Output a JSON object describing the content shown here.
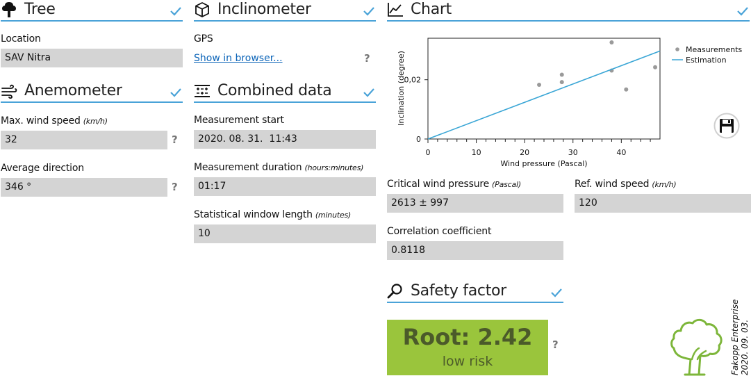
{
  "tree": {
    "title": "Tree",
    "location_label": "Location",
    "location_value": "SAV Nitra"
  },
  "inclinometer": {
    "title": "Inclinometer",
    "gps_label": "GPS",
    "gps_link": "Show in browser..."
  },
  "chart_section": {
    "title": "Chart"
  },
  "anemometer": {
    "title": "Anemometer",
    "max_wind_label": "Max. wind speed",
    "max_wind_unit": "(km/h)",
    "max_wind_value": "32",
    "avg_dir_label": "Average direction",
    "avg_dir_value": "346 °"
  },
  "combined": {
    "title": "Combined data",
    "start_label": "Measurement start",
    "start_value": "2020. 08. 31.  11:43",
    "duration_label": "Measurement duration",
    "duration_unit": "(hours:minutes)",
    "duration_value": "01:17",
    "window_label": "Statistical window length",
    "window_unit": "(minutes)",
    "window_value": "10"
  },
  "results": {
    "critical_label": "Critical wind pressure",
    "critical_unit": "(Pascal)",
    "critical_value": "2613 ± 997",
    "ref_label": "Ref. wind speed",
    "ref_unit": "(km/h)",
    "ref_value": "120",
    "corr_label": "Correlation coefficient",
    "corr_value": "0.8118"
  },
  "safety": {
    "title": "Safety factor",
    "root_text": "Root: 2.42",
    "risk_text": "low risk",
    "box_color": "#9ac53c"
  },
  "brand": {
    "company": "Fakopp Enterprise",
    "date": "2020. 09. 03."
  },
  "help_symbol": "?",
  "colors": {
    "accent": "#4aa3d8",
    "field": "#d4d4d4",
    "link": "#0b64b8",
    "tree_logo": "#7db63a"
  },
  "icons": {
    "tree": "tree-icon",
    "inclinometer": "cube-icon",
    "chart": "line-chart-icon",
    "anemometer": "wind-icon",
    "combined": "combined-data-icon",
    "safety": "magnifier-icon",
    "save": "save-icon",
    "check": "check-icon",
    "logo": "tree-logo"
  },
  "chart_data": {
    "type": "scatter",
    "title": "",
    "xlabel": "Wind pressure (Pascal)",
    "ylabel": "Inclination (degree)",
    "xlim": [
      0,
      48
    ],
    "ylim": [
      0,
      0.034
    ],
    "xticks": [
      0,
      10,
      20,
      30,
      40
    ],
    "xtick_labels": [
      "0",
      "10",
      "20",
      "30",
      "40"
    ],
    "yticks": [
      0,
      0.02
    ],
    "ytick_labels": [
      "0",
      "0,02"
    ],
    "legend_position": "top-right",
    "series": [
      {
        "name": "Measurements",
        "kind": "scatter",
        "color": "#9a9a9a",
        "points": [
          {
            "x": 23,
            "y": 0.0183
          },
          {
            "x": 27.7,
            "y": 0.0217
          },
          {
            "x": 27.7,
            "y": 0.0192
          },
          {
            "x": 38,
            "y": 0.0326
          },
          {
            "x": 38,
            "y": 0.0231
          },
          {
            "x": 41,
            "y": 0.0167
          },
          {
            "x": 47,
            "y": 0.0242
          }
        ]
      },
      {
        "name": "Estimation",
        "kind": "line",
        "color": "#3aa6d6",
        "points": [
          {
            "x": 0,
            "y": 0
          },
          {
            "x": 48,
            "y": 0.0297
          }
        ]
      }
    ]
  }
}
